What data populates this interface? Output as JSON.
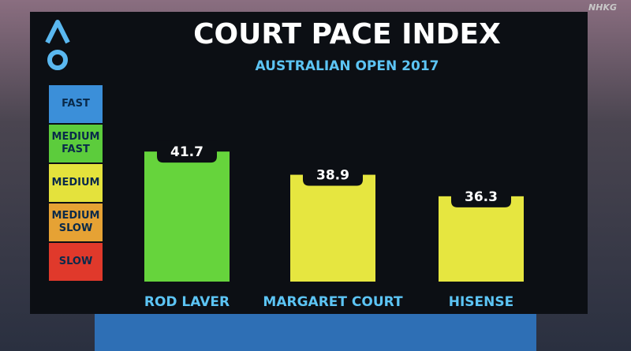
{
  "chart_data": {
    "type": "bar",
    "title": "COURT PACE INDEX",
    "subtitle": "AUSTRALIAN OPEN 2017",
    "categories": [
      "ROD LAVER",
      "MARGARET COURT",
      "HISENSE"
    ],
    "values": [
      41.7,
      38.9,
      36.3
    ],
    "colors": [
      "#66d43c",
      "#e6e640",
      "#e6e640"
    ],
    "ylim": [
      26,
      46
    ],
    "scale": [
      {
        "label": "FAST",
        "color": "#3b8fd9"
      },
      {
        "label": "MEDIUM FAST",
        "color": "#5ccc3c"
      },
      {
        "label": "MEDIUM",
        "color": "#e4e23c"
      },
      {
        "label": "MEDIUM SLOW",
        "color": "#e6a234"
      },
      {
        "label": "SLOW",
        "color": "#e0392b"
      }
    ]
  },
  "watermark": "NHKG"
}
